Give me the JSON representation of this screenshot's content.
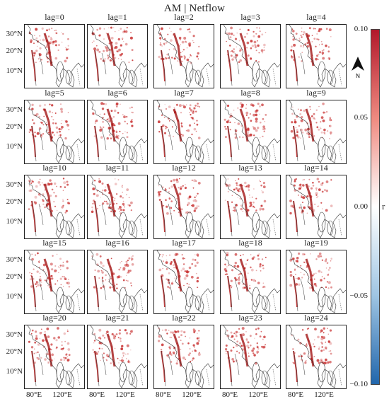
{
  "title": "AM | Netflow",
  "panels": [
    "lag=0",
    "lag=1",
    "lag=2",
    "lag=3",
    "lag=4",
    "lag=5",
    "lag=6",
    "lag=7",
    "lag=8",
    "lag=9",
    "lag=10",
    "lag=11",
    "lag=12",
    "lag=13",
    "lag=14",
    "lag=15",
    "lag=16",
    "lag=17",
    "lag=18",
    "lag=19",
    "lag=20",
    "lag=21",
    "lag=22",
    "lag=23",
    "lag=24"
  ],
  "lat_ticks": [
    "30°N",
    "20°N",
    "10°N"
  ],
  "lon_ticks": [
    "80°E",
    "120°E"
  ],
  "colorbar": {
    "label": "r",
    "ticks": [
      "0.10",
      "0.05",
      "0.00",
      "−0.05",
      "−0.10"
    ],
    "range": [
      -0.1,
      0.1
    ],
    "colors": {
      "high": "#b2182b",
      "mid": "#ffffff",
      "low": "#2166ac"
    }
  },
  "north_arrow": {
    "label": "N",
    "icon": "north-arrow-icon"
  }
}
